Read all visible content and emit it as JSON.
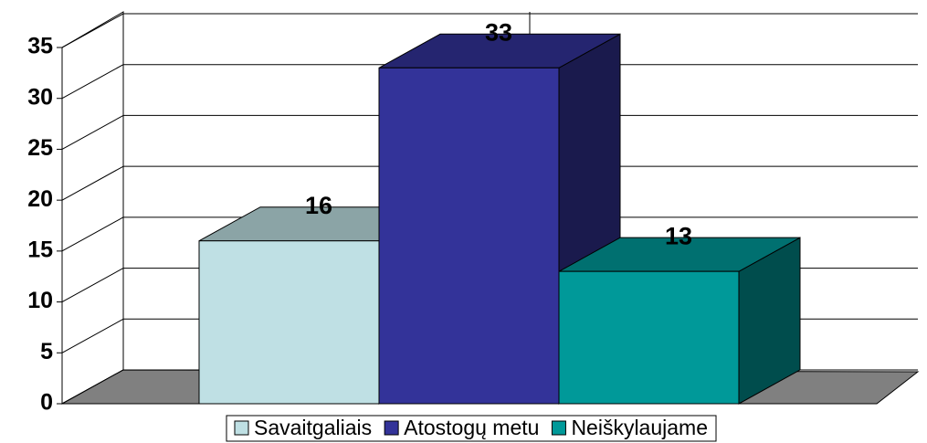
{
  "chart_data": {
    "type": "bar3d",
    "series": [
      {
        "name": "Savaitgaliais",
        "color": "#bfe0e4",
        "values": [
          16
        ]
      },
      {
        "name": "Atostogų metu",
        "color": "#333399",
        "values": [
          33
        ]
      },
      {
        "name": "Neiškylaujame",
        "color": "#009999",
        "values": [
          13
        ]
      }
    ],
    "ylim": [
      0,
      35
    ],
    "yticks": [
      0,
      5,
      10,
      15,
      20,
      25,
      30,
      35
    ],
    "grid": true,
    "legend": "bottom"
  }
}
